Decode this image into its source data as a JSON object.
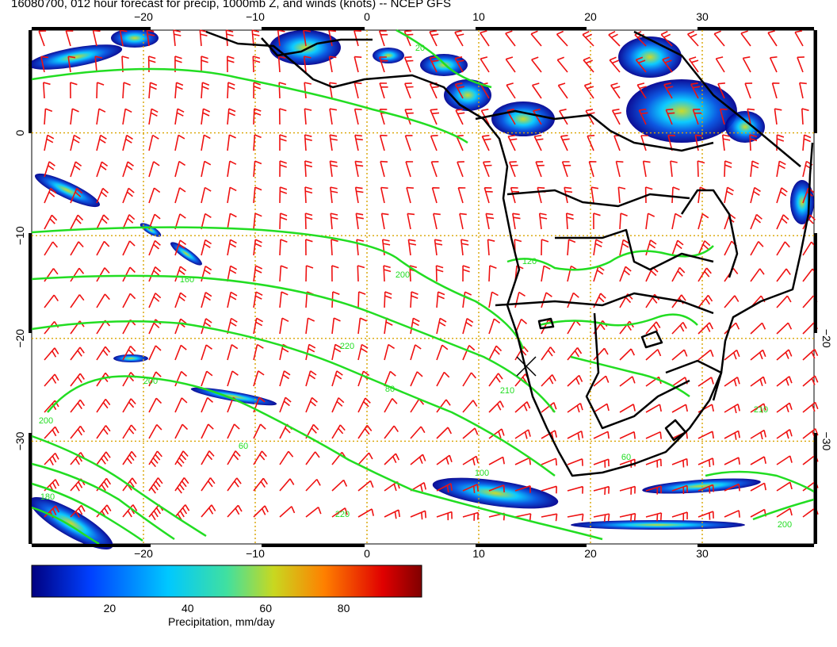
{
  "title": "16080700, 012 hour forecast for precip, 1000mb Z, and winds (knots) -- NCEP GFS",
  "map": {
    "lon_range": [
      -30,
      40
    ],
    "lat_range": [
      -40,
      10
    ],
    "lon_ticks": [
      "−20",
      "−10",
      "0",
      "10",
      "20",
      "30"
    ],
    "lat_ticks_left": [
      "0",
      "−10",
      "−20",
      "−30"
    ],
    "lat_ticks_right": [
      "−20",
      "−30"
    ],
    "grid": "dotted orange at 10 degree spacing",
    "colors": {
      "coastline": "#000000",
      "contour": "#22dd22",
      "wind_barb": "#ee1111",
      "grid": "#d9a400"
    },
    "contour_labels": [
      "160",
      "200",
      "220",
      "80",
      "210",
      "60",
      "120",
      "200",
      "220",
      "60",
      "200",
      "100",
      "210",
      "180",
      "200",
      "20"
    ],
    "marker": "x-marker-icon"
  },
  "colorbar": {
    "ticks": [
      "20",
      "40",
      "60",
      "80"
    ],
    "range": [
      0,
      100
    ],
    "label": "Precipitation, mm/day",
    "colors": [
      "#000080",
      "#0040ff",
      "#00c8ff",
      "#40e0a0",
      "#c8d820",
      "#ff8000",
      "#e00000",
      "#800000"
    ]
  }
}
